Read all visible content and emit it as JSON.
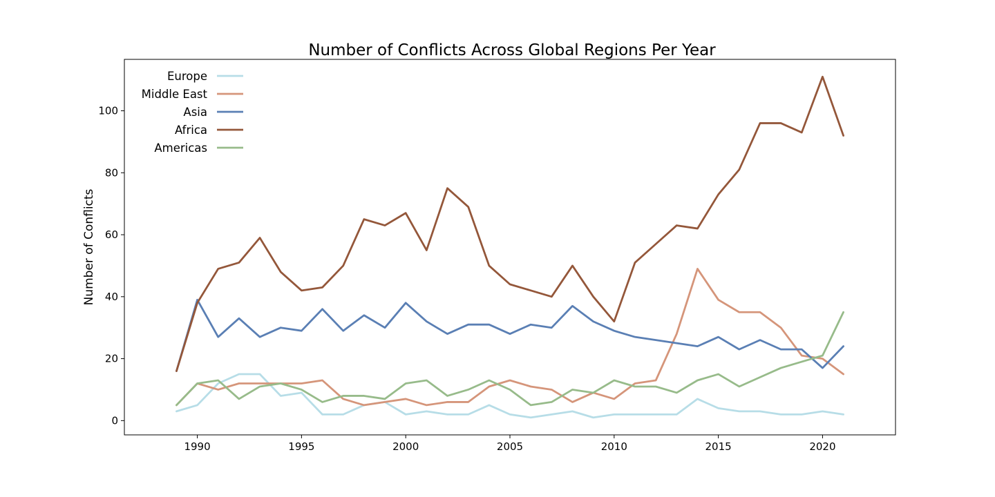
{
  "chart_data": {
    "type": "line",
    "title": "Number of Conflicts Across Global Regions Per Year",
    "xlabel": "",
    "ylabel": "Number of Conflicts",
    "xlim": [
      1986.5,
      2023.5
    ],
    "ylim": [
      -4.6,
      116.6
    ],
    "xticks": [
      1990,
      1995,
      2000,
      2005,
      2010,
      2015,
      2020
    ],
    "yticks": [
      0,
      20,
      40,
      60,
      80,
      100
    ],
    "grid": false,
    "legend_position": "top-left",
    "x": [
      1989,
      1990,
      1991,
      1992,
      1993,
      1994,
      1995,
      1996,
      1997,
      1998,
      1999,
      2000,
      2001,
      2002,
      2003,
      2004,
      2005,
      2006,
      2007,
      2008,
      2009,
      2010,
      2011,
      2012,
      2013,
      2014,
      2015,
      2016,
      2017,
      2018,
      2019,
      2020,
      2021
    ],
    "series": [
      {
        "name": "Europe",
        "color": "#b7dde7",
        "values": [
          3,
          5,
          12,
          15,
          15,
          8,
          9,
          2,
          2,
          5,
          6,
          2,
          3,
          2,
          2,
          5,
          2,
          1,
          2,
          3,
          1,
          2,
          2,
          2,
          2,
          7,
          4,
          3,
          3,
          2,
          2,
          3,
          2
        ]
      },
      {
        "name": "Middle East",
        "color": "#d5957a",
        "values": [
          5,
          12,
          10,
          12,
          12,
          12,
          12,
          13,
          7,
          5,
          6,
          7,
          5,
          6,
          6,
          11,
          13,
          11,
          10,
          6,
          9,
          7,
          12,
          13,
          28,
          49,
          39,
          35,
          35,
          30,
          21,
          20,
          15
        ]
      },
      {
        "name": "Asia",
        "color": "#5a7fb4",
        "values": [
          16,
          39,
          27,
          33,
          27,
          30,
          29,
          36,
          29,
          34,
          30,
          38,
          32,
          28,
          31,
          31,
          28,
          31,
          30,
          37,
          32,
          29,
          27,
          26,
          25,
          24,
          27,
          23,
          26,
          23,
          23,
          17,
          24
        ]
      },
      {
        "name": "Africa",
        "color": "#94573a",
        "values": [
          16,
          38,
          49,
          51,
          59,
          48,
          42,
          43,
          50,
          65,
          63,
          67,
          55,
          75,
          69,
          50,
          44,
          42,
          40,
          50,
          40,
          32,
          51,
          57,
          63,
          62,
          73,
          81,
          96,
          96,
          93,
          111,
          92
        ]
      },
      {
        "name": "Americas",
        "color": "#97bb8a",
        "values": [
          5,
          12,
          13,
          7,
          11,
          12,
          10,
          6,
          8,
          8,
          7,
          12,
          13,
          8,
          10,
          13,
          10,
          5,
          6,
          10,
          9,
          13,
          11,
          11,
          9,
          13,
          15,
          11,
          14,
          17,
          19,
          21,
          35
        ]
      }
    ]
  }
}
